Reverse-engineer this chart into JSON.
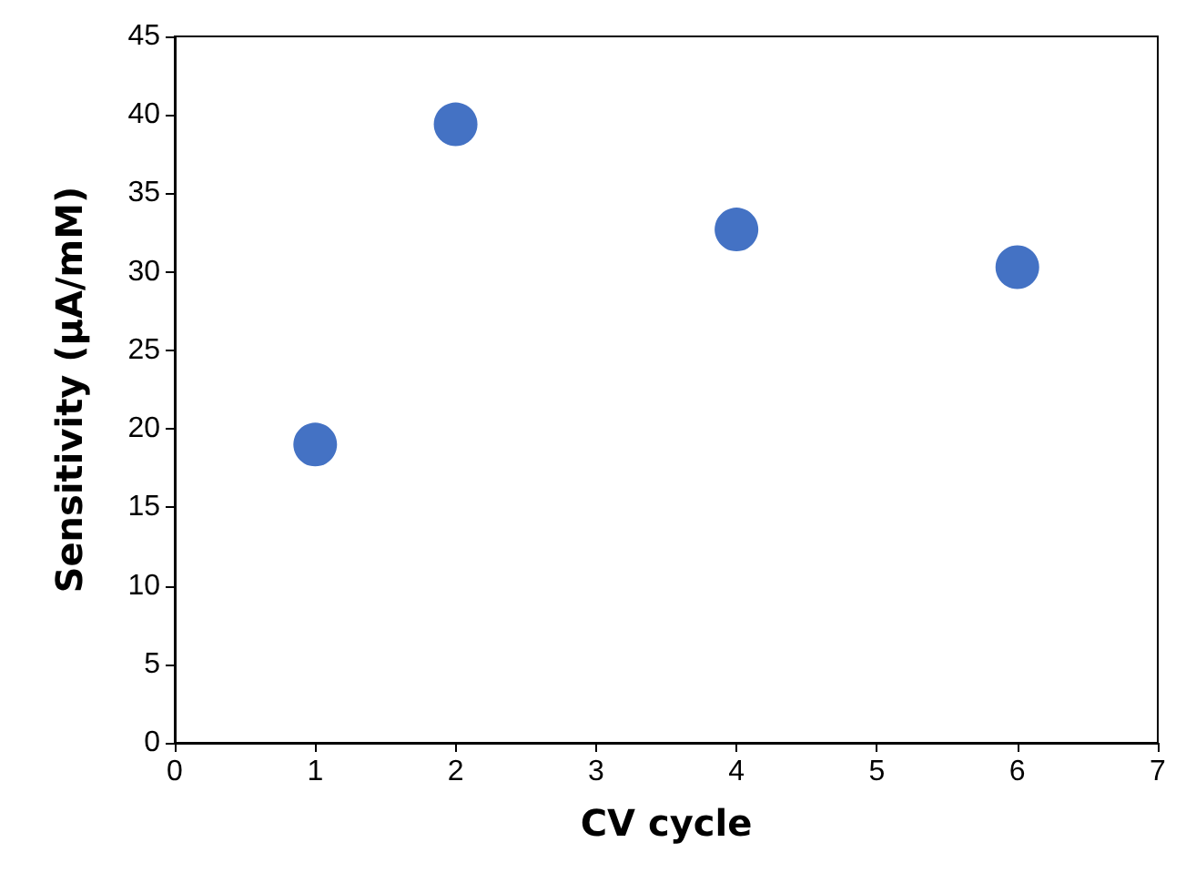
{
  "chart_data": {
    "type": "scatter",
    "xlabel": "CV cycle",
    "ylabel": "Sensitivity (μA/mM)",
    "x": [
      1,
      2,
      4,
      6
    ],
    "series": [
      {
        "color": "#4472c4",
        "values": [
          19.0,
          39.4,
          32.7,
          30.3
        ]
      }
    ],
    "xlim": [
      0,
      7
    ],
    "xticks": [
      0,
      1,
      2,
      3,
      4,
      5,
      6,
      7
    ],
    "ylim": [
      0,
      45
    ],
    "yticks": [
      0,
      5,
      10,
      15,
      20,
      25,
      30,
      35,
      40,
      45
    ],
    "grid": false,
    "marker": "circle"
  }
}
